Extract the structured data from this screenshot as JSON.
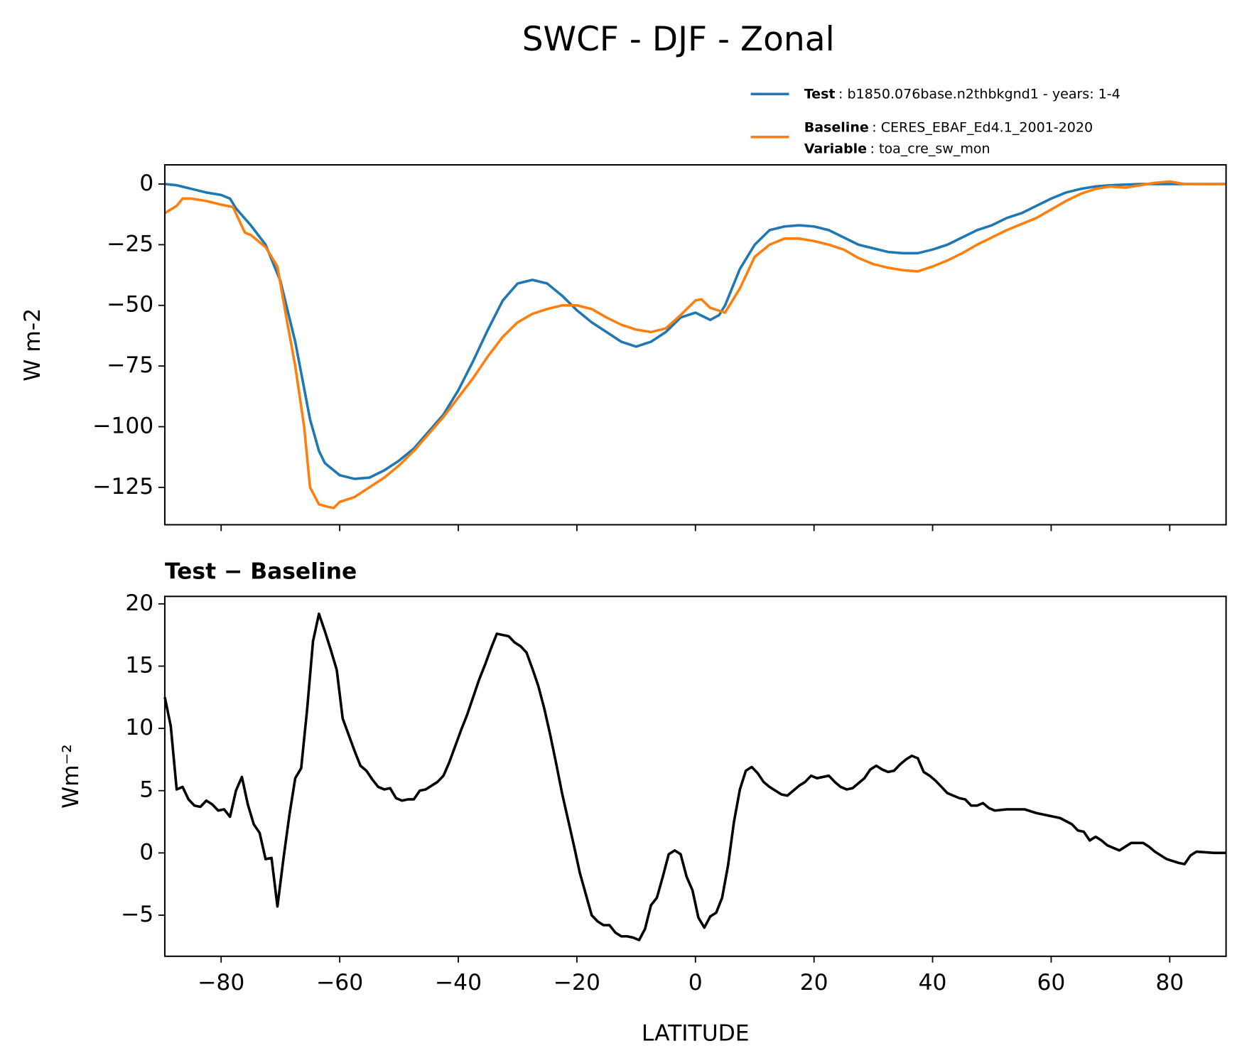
{
  "title": "SWCF - DJF - Zonal",
  "chart_data": [
    {
      "type": "line",
      "ylabel": "W m-2",
      "xlim": [
        -89.5,
        89.5
      ],
      "ylim": [
        -140.4,
        7.9
      ],
      "xticks": [
        -80,
        -60,
        -40,
        -20,
        0,
        20,
        40,
        60,
        80
      ],
      "yticks": [
        {
          "value": -125,
          "label": "−125"
        },
        {
          "value": -100,
          "label": "−100"
        },
        {
          "value": -75,
          "label": "−75"
        },
        {
          "value": -50,
          "label": "−50"
        },
        {
          "value": -25,
          "label": "−25"
        },
        0
      ],
      "variable_label": "Variable",
      "variable": ": toa_cre_sw_mon",
      "series": [
        {
          "name": "Test",
          "description": ": b1850.076base.n2thbkgnd1 - years: 1-4",
          "color": "#1f77b4",
          "x": [
            -89.5,
            -87.5,
            -85,
            -82.5,
            -80,
            -78.5,
            -77.5,
            -75,
            -72.5,
            -70,
            -67.5,
            -65,
            -63.5,
            -62.5,
            -60,
            -57.5,
            -55,
            -52.5,
            -50,
            -47.5,
            -45,
            -42.5,
            -40,
            -37.5,
            -35,
            -32.5,
            -30,
            -27.5,
            -25,
            -22.5,
            -20,
            -17.5,
            -15,
            -12.5,
            -10,
            -7.5,
            -5,
            -2.5,
            0,
            2.5,
            4,
            5,
            7.5,
            10,
            12.5,
            15,
            17.5,
            20,
            22.5,
            25,
            27.5,
            30,
            32.5,
            35,
            37.5,
            40,
            42.5,
            45,
            47.5,
            50,
            52.5,
            55,
            57.5,
            60,
            62.5,
            65,
            67.5,
            70,
            75,
            80,
            85,
            89.5
          ],
          "values": [
            0,
            -0.5,
            -2,
            -3.5,
            -4.5,
            -6,
            -10,
            -17,
            -25,
            -40,
            -65,
            -97,
            -110,
            -115,
            -120,
            -121.5,
            -121,
            -118,
            -114,
            -109,
            -102,
            -95,
            -85,
            -73,
            -60,
            -48,
            -41,
            -39.5,
            -41,
            -46,
            -52,
            -57,
            -61,
            -65,
            -67,
            -65,
            -61,
            -55,
            -53,
            -56,
            -54,
            -50,
            -35,
            -25,
            -19,
            -17.5,
            -17,
            -17.5,
            -19,
            -22,
            -25,
            -26.5,
            -28,
            -28.5,
            -28.5,
            -27,
            -25,
            -22,
            -19,
            -17,
            -14,
            -12,
            -9,
            -6,
            -3.5,
            -2,
            -1,
            -0.5,
            0,
            0,
            0,
            0
          ]
        },
        {
          "name": "Baseline",
          "description": ": CERES_EBAF_Ed4.1_2001-2020",
          "color": "#ff7f0e",
          "x": [
            -89.5,
            -87.5,
            -86.5,
            -85,
            -82.5,
            -80,
            -78,
            -76,
            -75,
            -72.5,
            -70.5,
            -69,
            -67.5,
            -66,
            -65,
            -63.5,
            -62,
            -61,
            -60,
            -57.5,
            -55,
            -52.5,
            -50,
            -47.5,
            -45,
            -42.5,
            -40,
            -37.5,
            -35,
            -32.5,
            -30,
            -27.5,
            -25,
            -22.5,
            -20,
            -17.5,
            -15,
            -12.5,
            -10,
            -7.5,
            -5,
            -2.5,
            0,
            1,
            2.5,
            5,
            7.5,
            10,
            12.5,
            15,
            17.5,
            20,
            22.5,
            25,
            27.5,
            30,
            32.5,
            35,
            37.5,
            40,
            42.5,
            45,
            47.5,
            50,
            52.5,
            55,
            57.5,
            60,
            62.5,
            65,
            67.5,
            70,
            72.5,
            75,
            77.5,
            80,
            82.5,
            85,
            89.5
          ],
          "values": [
            -12,
            -9,
            -6,
            -6,
            -7,
            -8.5,
            -9.5,
            -20,
            -21,
            -26,
            -34,
            -55,
            -75,
            -100,
            -125,
            -132,
            -133,
            -133.5,
            -131,
            -129,
            -125,
            -121,
            -116,
            -110,
            -103,
            -96,
            -88,
            -80,
            -71,
            -63,
            -57,
            -53.5,
            -51.5,
            -50,
            -50,
            -51.5,
            -55,
            -58,
            -60,
            -61,
            -59.5,
            -54,
            -48,
            -47.5,
            -51,
            -53,
            -43,
            -30,
            -25,
            -22.5,
            -22.5,
            -23.5,
            -25,
            -27,
            -30.5,
            -33,
            -34.5,
            -35.5,
            -36,
            -34,
            -31.5,
            -28.5,
            -25,
            -22,
            -19,
            -16.5,
            -14,
            -10.5,
            -7,
            -4,
            -2,
            -1,
            -1.5,
            -0.5,
            0.5,
            1,
            0,
            0,
            0
          ]
        }
      ]
    },
    {
      "type": "line",
      "title": "Test − Baseline",
      "xlabel": "LATITUDE",
      "ylabel": "Wm⁻²",
      "xlim": [
        -89.5,
        89.5
      ],
      "ylim": [
        -8.3,
        20.6
      ],
      "xticks": [
        {
          "value": -80,
          "label": "−80"
        },
        {
          "value": -60,
          "label": "−60"
        },
        {
          "value": -40,
          "label": "−40"
        },
        {
          "value": -20,
          "label": "−20"
        },
        0,
        20,
        40,
        60,
        80
      ],
      "yticks": [
        {
          "value": -5,
          "label": "−5"
        },
        0,
        5,
        10,
        15,
        20
      ],
      "series": [
        {
          "color": "#000000",
          "x": [
            -89.5,
            -88.5,
            -87.5,
            -86.5,
            -85.5,
            -84.5,
            -83.5,
            -82.5,
            -81.5,
            -80.5,
            -79.5,
            -78.5,
            -77.5,
            -76.5,
            -75.5,
            -74.5,
            -73.5,
            -72.5,
            -71.5,
            -70.5,
            -69.5,
            -68.5,
            -67.5,
            -66.5,
            -65.5,
            -64.5,
            -63.5,
            -62.5,
            -61.5,
            -60.5,
            -59.5,
            -58.5,
            -57.5,
            -56.5,
            -55.5,
            -54.5,
            -53.5,
            -52.5,
            -51.5,
            -50.5,
            -49.5,
            -48.5,
            -47.5,
            -46.5,
            -45.5,
            -44.5,
            -43.5,
            -42.5,
            -41.5,
            -40.5,
            -39.5,
            -38.5,
            -37.5,
            -36.5,
            -35.5,
            -34.5,
            -33.5,
            -32.5,
            -31.5,
            -30.5,
            -29.5,
            -28.5,
            -27.5,
            -26.5,
            -25.5,
            -24.5,
            -23.5,
            -22.5,
            -21.5,
            -20.5,
            -19.5,
            -18.5,
            -17.5,
            -16.5,
            -15.5,
            -14.5,
            -13.5,
            -12.5,
            -11.5,
            -10.5,
            -9.5,
            -8.5,
            -7.5,
            -6.5,
            -5.5,
            -4.5,
            -3.5,
            -2.5,
            -1.5,
            -0.5,
            0.5,
            1.5,
            2.5,
            3.5,
            4.5,
            5.5,
            6.5,
            7.5,
            8.5,
            9.5,
            10.5,
            11.5,
            12.5,
            13.5,
            14.5,
            15.5,
            16.5,
            17.5,
            18.5,
            19.5,
            20.5,
            22.5,
            23.5,
            24.5,
            25.5,
            26.5,
            27.5,
            28.5,
            29.5,
            30.5,
            31.5,
            32.5,
            33.5,
            34.5,
            35.5,
            36.5,
            37.5,
            38.5,
            39.5,
            40.5,
            41.5,
            42.5,
            43.5,
            44.5,
            45.5,
            46.5,
            47.5,
            48.5,
            49.5,
            50.5,
            52.5,
            55.5,
            57.5,
            59.5,
            61.5,
            63.5,
            64.5,
            65.5,
            66.5,
            67.5,
            68.5,
            69.5,
            71.5,
            72.5,
            73.5,
            75.5,
            76.5,
            77.5,
            79.5,
            81.5,
            82.5,
            83.5,
            84.5,
            87.5,
            89.5
          ],
          "values": [
            12.5,
            10.2,
            5.1,
            5.3,
            4.3,
            3.8,
            3.7,
            4.2,
            3.9,
            3.4,
            3.5,
            2.9,
            5.0,
            6.1,
            3.9,
            2.3,
            1.6,
            -0.5,
            -0.4,
            -4.3,
            -0.5,
            3.0,
            6.0,
            6.8,
            11.5,
            17,
            19.2,
            17.8,
            16.3,
            14.7,
            10.8,
            9.5,
            8.2,
            7.0,
            6.6,
            5.9,
            5.3,
            5.1,
            5.2,
            4.4,
            4.2,
            4.3,
            4.3,
            5.0,
            5.1,
            5.4,
            5.7,
            6.2,
            7.3,
            8.6,
            9.9,
            11.1,
            12.5,
            13.9,
            15.1,
            16.4,
            17.6,
            17.5,
            17.4,
            16.9,
            16.6,
            16.1,
            14.8,
            13.4,
            11.6,
            9.5,
            7.2,
            4.8,
            2.7,
            0.6,
            -1.6,
            -3.3,
            -5,
            -5.5,
            -5.8,
            -5.8,
            -6.4,
            -6.7,
            -6.7,
            -6.8,
            -7.0,
            -6.1,
            -4.2,
            -3.6,
            -1.9,
            -0.1,
            0.2,
            -0.1,
            -1.9,
            -3.0,
            -5.2,
            -6.0,
            -5.1,
            -4.8,
            -3.6,
            -1.0,
            2.5,
            5.1,
            6.6,
            6.9,
            6.4,
            5.7,
            5.3,
            5.0,
            4.7,
            4.6,
            5.0,
            5.4,
            5.7,
            6.2,
            6.0,
            6.2,
            5.7,
            5.3,
            5.1,
            5.2,
            5.6,
            6.0,
            6.7,
            7.0,
            6.7,
            6.5,
            6.6,
            7.1,
            7.5,
            7.8,
            7.6,
            6.5,
            6.2,
            5.8,
            5.3,
            4.8,
            4.6,
            4.4,
            4.3,
            3.8,
            3.8,
            4.0,
            3.6,
            3.4,
            3.5,
            3.5,
            3.2,
            3.0,
            2.8,
            2.3,
            1.8,
            1.7,
            1.0,
            1.3,
            1.0,
            0.6,
            0.2,
            0.5,
            0.8,
            0.8,
            0.5,
            0.1,
            -0.5,
            -0.8,
            -0.9,
            -0.2,
            0.1,
            0.0,
            0.0
          ]
        }
      ]
    }
  ]
}
